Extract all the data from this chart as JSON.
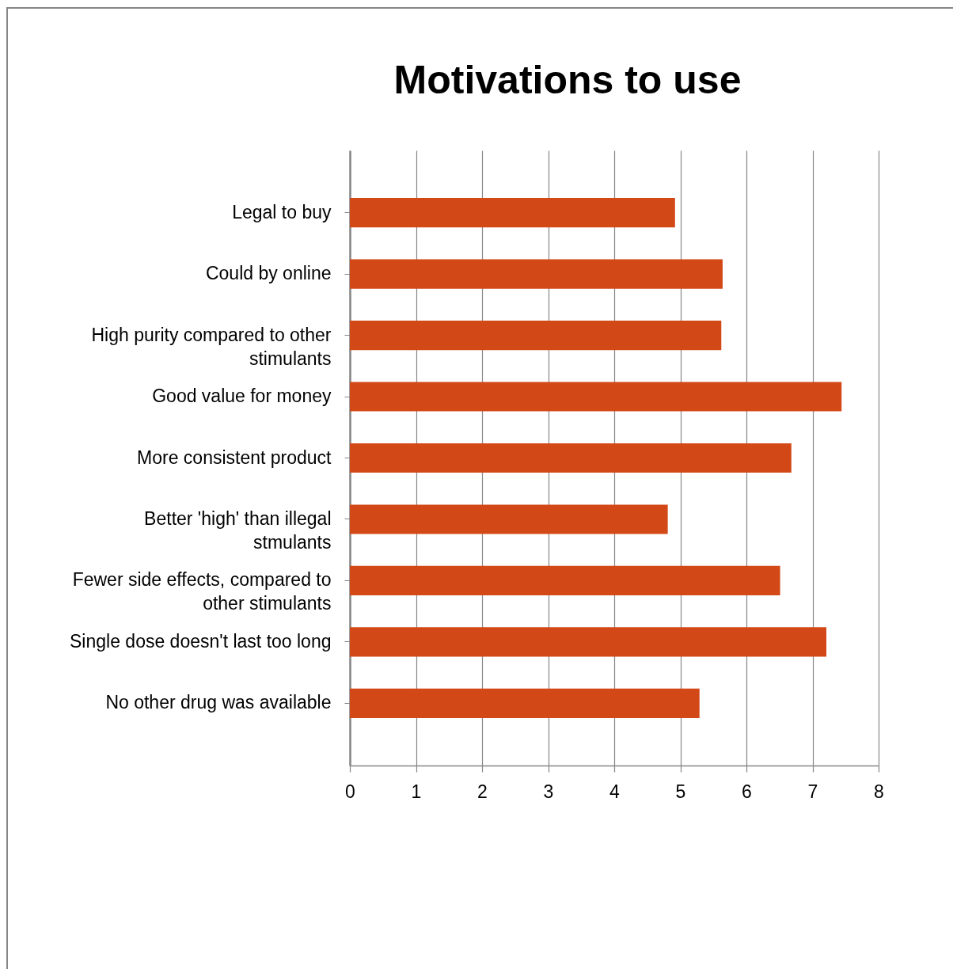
{
  "chart_data": {
    "type": "bar",
    "orientation": "horizontal",
    "title": "Motivations to use",
    "categories": [
      "Legal to buy",
      "Could by online",
      "High purity compared to other stimulants",
      "Good value for money",
      "More consistent product",
      "Better 'high' than illegal stmulants",
      "Fewer side effects, compared to other stimulants",
      "Single dose doesn't last too long",
      "No other drug was available"
    ],
    "values": [
      4.92,
      5.64,
      5.62,
      7.44,
      6.68,
      4.81,
      6.51,
      7.21,
      5.29
    ],
    "color": "#d34817",
    "xlim": [
      0,
      8
    ],
    "xticks": [
      0,
      1,
      2,
      3,
      4,
      5,
      6,
      7,
      8
    ],
    "grid": "x"
  }
}
